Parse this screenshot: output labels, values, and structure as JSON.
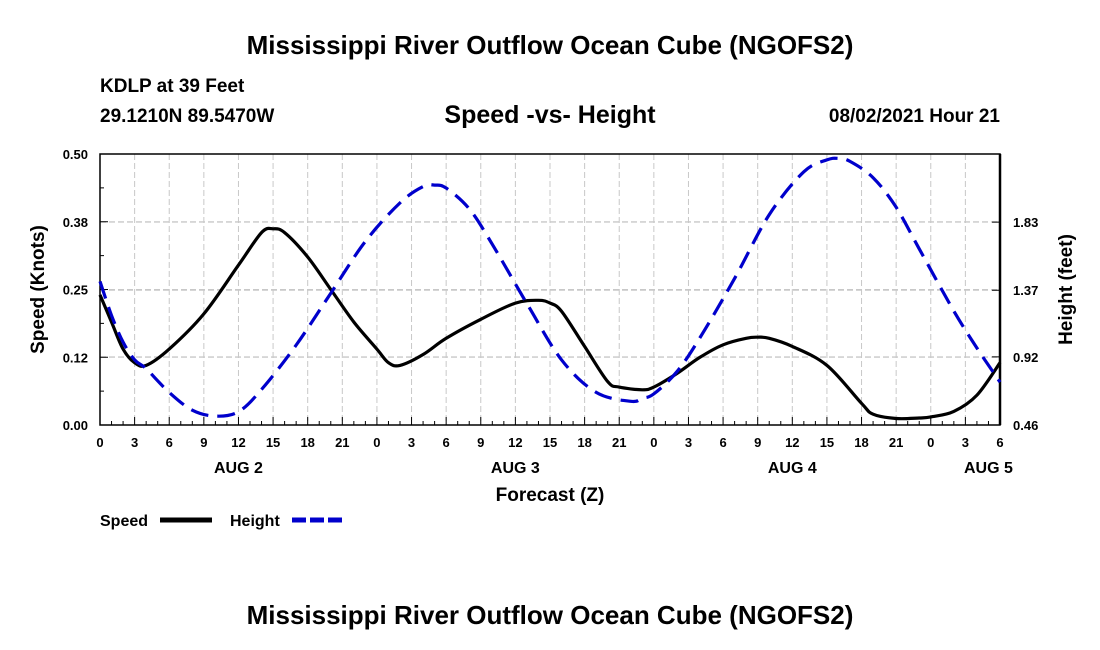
{
  "header": {
    "title": "Mississippi River Outflow Ocean Cube (NGOFS2)",
    "station": "KDLP at 39 Feet",
    "coordinates": "29.1210N  89.5470W",
    "subtitle": "Speed -vs- Height",
    "datetime": "08/02/2021 Hour 21"
  },
  "footer": {
    "title": "Mississippi River Outflow Ocean Cube (NGOFS2)"
  },
  "chart_data": {
    "type": "line",
    "xlabel": "Forecast (Z)",
    "ylabel_left": "Speed (Knots)",
    "ylabel_right": "Height (feet)",
    "x_range": [
      0,
      78
    ],
    "x_tick_step": 3,
    "x_tick_labels": [
      "0",
      "3",
      "6",
      "9",
      "12",
      "15",
      "18",
      "21",
      "0",
      "3",
      "6",
      "9",
      "12",
      "15",
      "18",
      "21",
      "0",
      "3",
      "6",
      "9",
      "12",
      "15",
      "18",
      "21",
      "0",
      "3",
      "6"
    ],
    "day_labels": [
      {
        "label": "AUG 2",
        "x": 12
      },
      {
        "label": "AUG 3",
        "x": 36
      },
      {
        "label": "AUG 4",
        "x": 60
      },
      {
        "label": "AUG 5",
        "x": 77
      }
    ],
    "y_left": {
      "range": [
        0,
        0.5
      ],
      "ticks": [
        0,
        0.125,
        0.25,
        0.375,
        0.5
      ],
      "tick_labels": [
        "0.00",
        "0.12",
        "0.25",
        "0.38",
        "0.50"
      ]
    },
    "y_right": {
      "range": [
        0.46,
        2.29
      ],
      "ticks": [
        0.46,
        0.92,
        1.37,
        1.83
      ],
      "tick_labels": [
        "0.46",
        "0.92",
        "1.37",
        "1.83"
      ]
    },
    "grid": true,
    "legend": {
      "position": "bottom-left",
      "items": [
        {
          "label": "Speed",
          "color": "#000000",
          "style": "solid"
        },
        {
          "label": "Height",
          "color": "#0000cc",
          "style": "dashed"
        }
      ]
    },
    "series": [
      {
        "name": "Speed",
        "axis": "left",
        "color": "#000000",
        "x": [
          0,
          1,
          2,
          3,
          4,
          6,
          9,
          12,
          14,
          15,
          16,
          18,
          20,
          22,
          24,
          25,
          26,
          28,
          30,
          33,
          36,
          38,
          39,
          40,
          42,
          44,
          45,
          47,
          48,
          50,
          52,
          54,
          56,
          57,
          58,
          60,
          63,
          66,
          67,
          69,
          71,
          72,
          74,
          76,
          78
        ],
        "values": [
          0.24,
          0.19,
          0.14,
          0.115,
          0.11,
          0.14,
          0.205,
          0.295,
          0.355,
          0.362,
          0.355,
          0.31,
          0.25,
          0.19,
          0.14,
          0.115,
          0.11,
          0.13,
          0.16,
          0.195,
          0.225,
          0.23,
          0.225,
          0.21,
          0.145,
          0.08,
          0.07,
          0.065,
          0.07,
          0.095,
          0.125,
          0.148,
          0.16,
          0.162,
          0.16,
          0.145,
          0.11,
          0.04,
          0.02,
          0.012,
          0.013,
          0.015,
          0.025,
          0.055,
          0.115
        ]
      },
      {
        "name": "Height",
        "axis": "right",
        "color": "#0000cc",
        "x": [
          0,
          1,
          2,
          3,
          4,
          6,
          8,
          10,
          12,
          14,
          17,
          20,
          23,
          26,
          28,
          29,
          30,
          32,
          34,
          37,
          40,
          43,
          46,
          47,
          48,
          50,
          52,
          55,
          58,
          61,
          63,
          64,
          65,
          67,
          69,
          71,
          74,
          76,
          78
        ],
        "values": [
          1.43,
          1.2,
          1.02,
          0.9,
          0.84,
          0.68,
          0.56,
          0.52,
          0.55,
          0.7,
          1.0,
          1.35,
          1.7,
          1.96,
          2.07,
          2.08,
          2.06,
          1.92,
          1.68,
          1.28,
          0.9,
          0.68,
          0.62,
          0.64,
          0.67,
          0.82,
          1.05,
          1.45,
          1.88,
          2.17,
          2.25,
          2.26,
          2.24,
          2.13,
          1.93,
          1.65,
          1.23,
          0.98,
          0.75
        ]
      }
    ]
  }
}
